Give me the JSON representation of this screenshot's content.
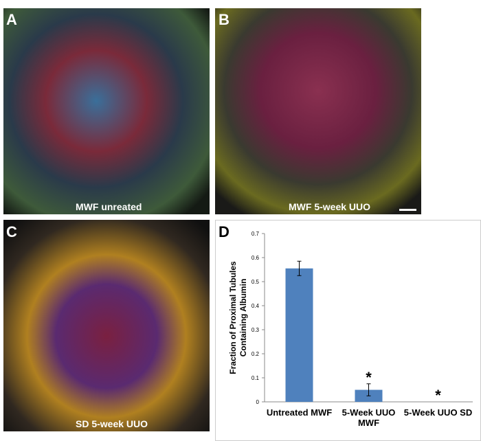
{
  "panels": [
    {
      "label": "A",
      "caption": "MWF unreated"
    },
    {
      "label": "B",
      "caption": "MWF 5-week UUO"
    },
    {
      "label": "C",
      "caption": "SD 5-week UUO"
    }
  ],
  "chart_data": {
    "type": "bar",
    "label": "D",
    "y_label": [
      "Fraction of Proximal Tubules",
      "Containing Albumin"
    ],
    "categories": [
      "Untreated MWF",
      "5-Week UUO MWF",
      "5-Week UUO SD"
    ],
    "values": [
      0.555,
      0.05,
      0
    ],
    "errors": [
      0.03,
      0.025,
      0
    ],
    "significance": [
      null,
      "*",
      "*"
    ],
    "color": "#4f81bd",
    "ylim": [
      0,
      0.7
    ],
    "yticks": [
      0,
      0.1,
      0.2,
      0.3,
      0.4,
      0.5,
      0.6,
      0.7
    ]
  }
}
